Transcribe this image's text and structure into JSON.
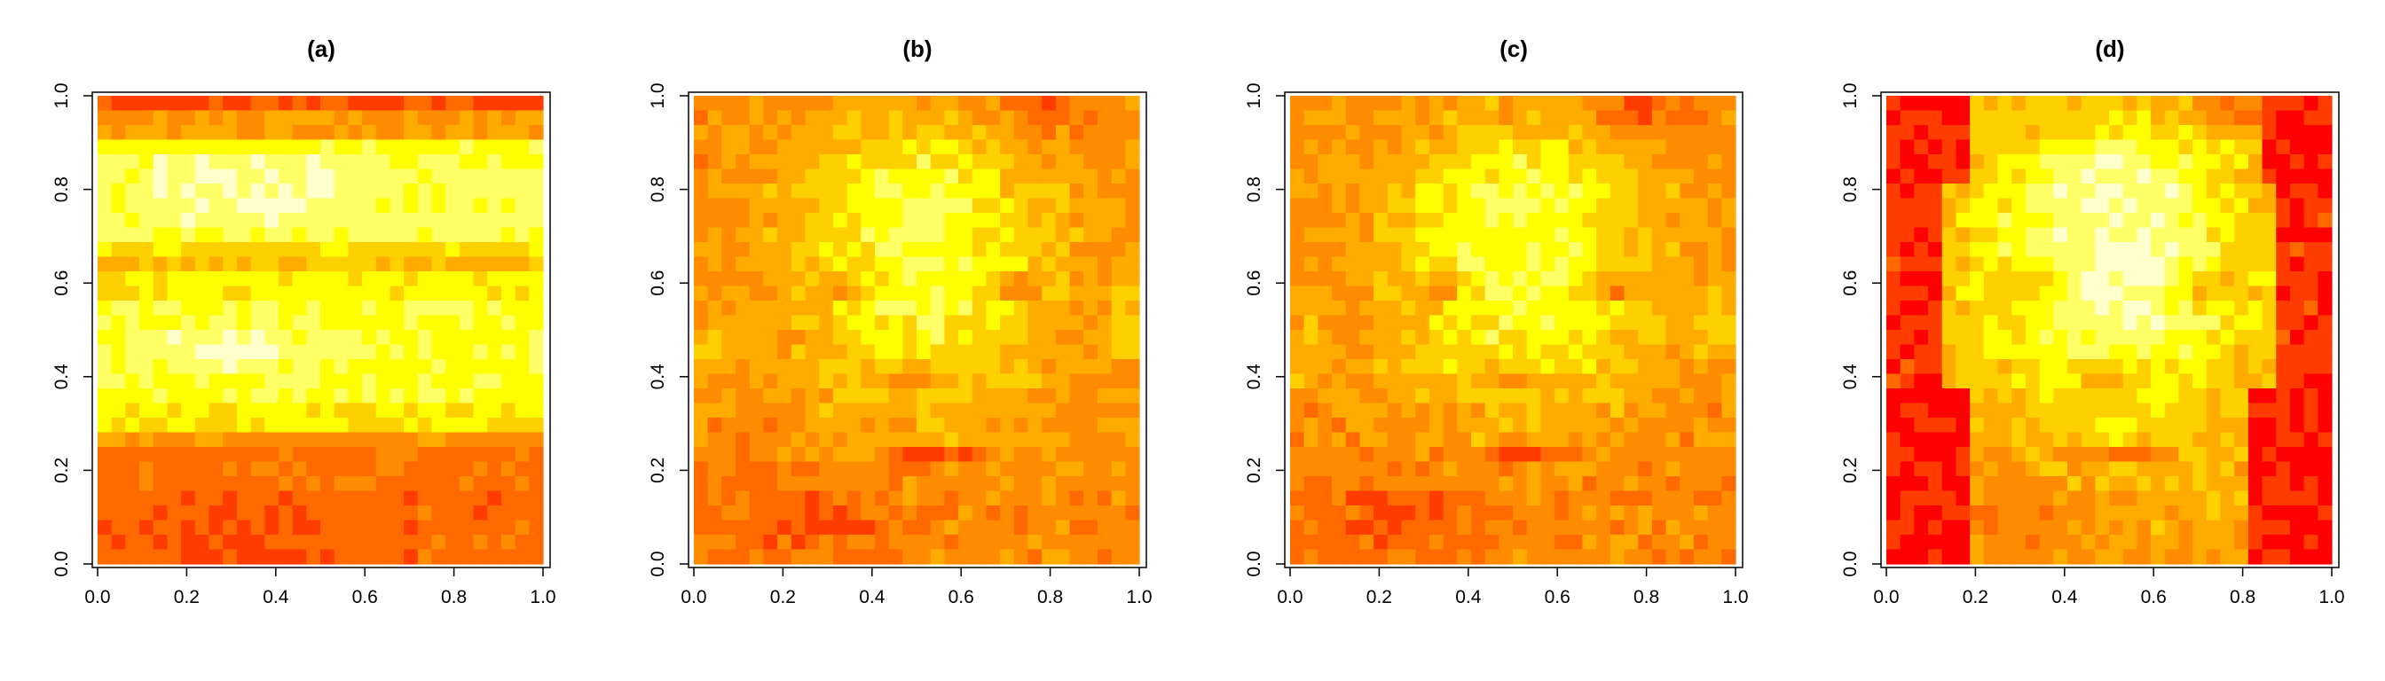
{
  "colors": {
    "palette": [
      "#ff0000",
      "#ff3c00",
      "#ff6a00",
      "#ff8c00",
      "#ffab00",
      "#ffd000",
      "#ffff00",
      "#ffff66",
      "#ffffcc"
    ],
    "axis": "#000000"
  },
  "chart_data": [
    {
      "type": "heatmap",
      "title": "(a)",
      "xlim": [
        0,
        1
      ],
      "ylim": [
        0,
        1
      ],
      "xticks": [
        "0.0",
        "0.2",
        "0.4",
        "0.6",
        "0.8",
        "1.0"
      ],
      "yticks": [
        "0.0",
        "0.2",
        "0.4",
        "0.6",
        "0.8",
        "1.0"
      ],
      "grid": false,
      "pattern": "bands",
      "color_levels": 9
    },
    {
      "type": "heatmap",
      "title": "(b)",
      "xlim": [
        0,
        1
      ],
      "ylim": [
        0,
        1
      ],
      "xticks": [
        "0.0",
        "0.2",
        "0.4",
        "0.6",
        "0.8",
        "1.0"
      ],
      "yticks": [
        "0.0",
        "0.2",
        "0.4",
        "0.6",
        "0.8",
        "1.0"
      ],
      "grid": false,
      "pattern": "face",
      "color_levels": 9
    },
    {
      "type": "heatmap",
      "title": "(c)",
      "xlim": [
        0,
        1
      ],
      "ylim": [
        0,
        1
      ],
      "xticks": [
        "0.0",
        "0.2",
        "0.4",
        "0.6",
        "0.8",
        "1.0"
      ],
      "yticks": [
        "0.0",
        "0.2",
        "0.4",
        "0.6",
        "0.8",
        "1.0"
      ],
      "grid": false,
      "pattern": "face",
      "color_levels": 9
    },
    {
      "type": "heatmap",
      "title": "(d)",
      "xlim": [
        0,
        1
      ],
      "ylim": [
        0,
        1
      ],
      "xticks": [
        "0.0",
        "0.2",
        "0.4",
        "0.6",
        "0.8",
        "1.0"
      ],
      "yticks": [
        "0.0",
        "0.2",
        "0.4",
        "0.6",
        "0.8",
        "1.0"
      ],
      "grid": false,
      "pattern": "face-dark-edges",
      "color_levels": 9
    }
  ]
}
